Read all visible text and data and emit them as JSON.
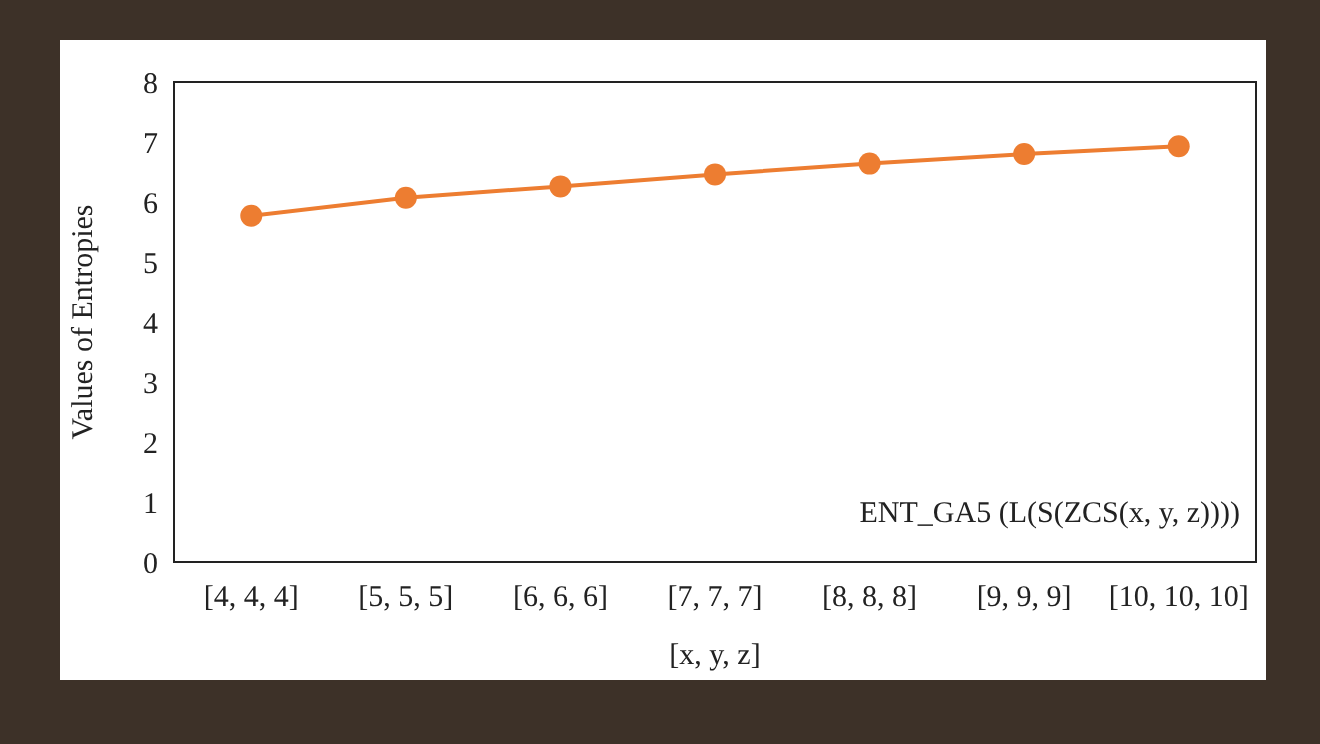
{
  "chart_data": {
    "type": "line",
    "xlabel": "[x, y, z]",
    "ylabel": "Values of Entropies",
    "categories": [
      "[4, 4, 4]",
      "[5, 5, 5]",
      "[6, 6, 6]",
      "[7, 7, 7]",
      "[8, 8, 8]",
      "[9, 9, 9]",
      "[10, 10, 10]"
    ],
    "series": [
      {
        "color": "#ed7d31",
        "values": [
          5.77,
          6.07,
          6.26,
          6.46,
          6.64,
          6.8,
          6.93
        ]
      }
    ],
    "ylim": [
      0,
      8
    ],
    "yticks": [
      0,
      1,
      2,
      3,
      4,
      5,
      6,
      7,
      8
    ],
    "marker": "circle",
    "line_style": "solid",
    "annotations": [
      "ENT_GA5 (L(S(ZCS(x, y, z))))"
    ]
  }
}
